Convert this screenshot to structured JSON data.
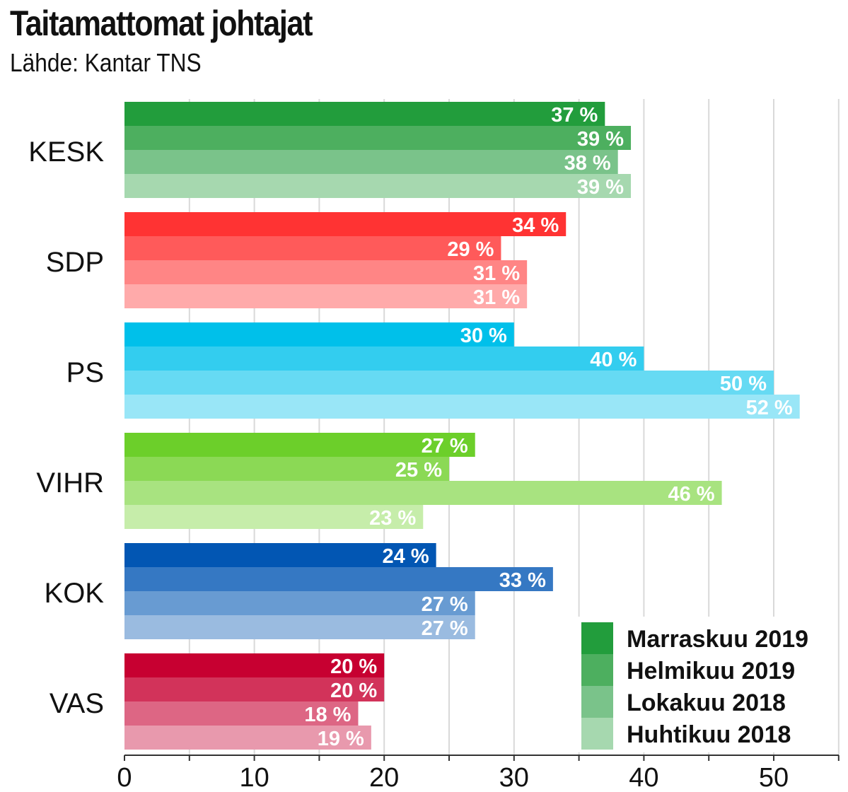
{
  "chart_data": {
    "type": "bar",
    "orientation": "horizontal",
    "title": "Taitamattomat johtajat",
    "subtitle": "Lähde: Kantar TNS",
    "categories": [
      "KESK",
      "SDP",
      "PS",
      "VIHR",
      "KOK",
      "VAS"
    ],
    "series": [
      {
        "name": "Marraskuu 2019",
        "values": [
          37,
          34,
          30,
          27,
          24,
          20
        ]
      },
      {
        "name": "Helmikuu 2019",
        "values": [
          39,
          29,
          40,
          25,
          33,
          20
        ]
      },
      {
        "name": "Lokakuu 2018",
        "values": [
          38,
          31,
          50,
          46,
          27,
          18
        ]
      },
      {
        "name": "Huhtikuu 2018",
        "values": [
          39,
          31,
          52,
          23,
          27,
          19
        ]
      }
    ],
    "value_suffix": " %",
    "xlim": [
      0,
      55
    ],
    "xticks": [
      0,
      10,
      20,
      30,
      40,
      50
    ],
    "grid": true,
    "legend_position": "bottom-right",
    "colors": {
      "KESK": [
        "#229d3c",
        "#4daf5f",
        "#7ac38a",
        "#a6d8af"
      ],
      "SDP": [
        "#ff3333",
        "#ff5a5a",
        "#ff8585",
        "#ffaaaa"
      ],
      "PS": [
        "#00c0ea",
        "#33cdef",
        "#66daf3",
        "#99e6f7"
      ],
      "VIHR": [
        "#6ccf2a",
        "#8bd955",
        "#a8e380",
        "#c6edaa"
      ],
      "KOK": [
        "#0256b3",
        "#3578c3",
        "#689bd2",
        "#9abbe0"
      ],
      "VAS": [
        "#c70031",
        "#d2335a",
        "#dd6684",
        "#e899ad"
      ],
      "legend": [
        "#229d3c",
        "#4daf5f",
        "#7ac38a",
        "#a6d8af"
      ]
    }
  }
}
